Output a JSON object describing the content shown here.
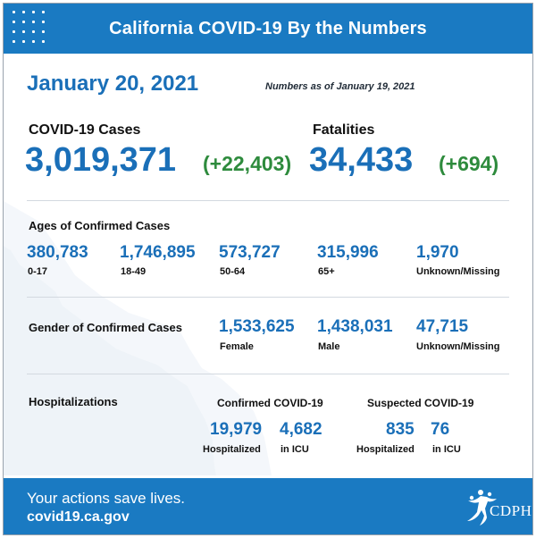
{
  "header": {
    "title": "California COVID-19 By the Numbers"
  },
  "report": {
    "date": "January 20, 2021",
    "as_of": "Numbers as of January 19, 2021"
  },
  "cases": {
    "label": "COVID-19 Cases",
    "total": "3,019,371",
    "change": "(+22,403)"
  },
  "fatalities": {
    "label": "Fatalities",
    "total": "34,433",
    "change": "(+694)"
  },
  "ages": {
    "title": "Ages of Confirmed Cases",
    "groups": [
      {
        "value": "380,783",
        "label": "0-17"
      },
      {
        "value": "1,746,895",
        "label": "18-49"
      },
      {
        "value": "573,727",
        "label": "50-64"
      },
      {
        "value": "315,996",
        "label": "65+"
      },
      {
        "value": "1,970",
        "label": "Unknown/Missing"
      }
    ]
  },
  "gender": {
    "title": "Gender of Confirmed Cases",
    "groups": [
      {
        "value": "1,533,625",
        "label": "Female"
      },
      {
        "value": "1,438,031",
        "label": "Male"
      },
      {
        "value": "47,715",
        "label": "Unknown/Missing"
      }
    ]
  },
  "hospitalizations": {
    "title": "Hospitalizations",
    "confirmed": {
      "title": "Confirmed COVID-19",
      "hospitalized": "19,979",
      "hospitalized_label": "Hospitalized",
      "icu": "4,682",
      "icu_label": "in ICU"
    },
    "suspected": {
      "title": "Suspected COVID-19",
      "hospitalized": "835",
      "hospitalized_label": "Hospitalized",
      "icu": "76",
      "icu_label": "in ICU"
    }
  },
  "footer": {
    "tagline": "Your actions save lives.",
    "url": "covid19.ca.gov",
    "logo_text": "CDPH"
  },
  "colors": {
    "brand_blue": "#1a7ac2",
    "number_blue": "#1a6fb8",
    "increase_green": "#2e8b3d"
  }
}
